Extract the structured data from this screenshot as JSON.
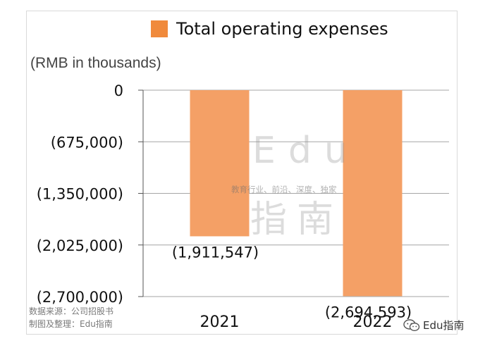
{
  "legend": {
    "label": "Total operating expenses",
    "color": "#f08a3c"
  },
  "unit_label": "(RMB in thousands)",
  "source": {
    "line1": "数据来源：公司招股书",
    "line2": "制图及整理：Edu指南"
  },
  "watermark": {
    "text": "Edu",
    "subtitle": "教育行业、前沿、深度、独家",
    "chars": "指南"
  },
  "brand": {
    "label": "Edu指南",
    "icon": "wechat-icon"
  },
  "chart_data": {
    "type": "bar",
    "categories": [
      "2021",
      "2022"
    ],
    "series": [
      {
        "name": "Total operating expenses",
        "values": [
          -1911547,
          -2694593
        ],
        "value_labels": [
          "(1,911,547)",
          "(2,694,593)"
        ],
        "color": "#f4a066"
      }
    ],
    "ylim": [
      -2700000,
      0
    ],
    "yticks": [
      0,
      -675000,
      -1350000,
      -2025000,
      -2700000
    ],
    "ytick_labels": [
      "0",
      "(675,000)",
      "(1,350,000)",
      "(2,025,000)",
      "(2,700,000)"
    ],
    "ylabel": "(RMB in thousands)",
    "grid": true,
    "legend_position": "top"
  }
}
